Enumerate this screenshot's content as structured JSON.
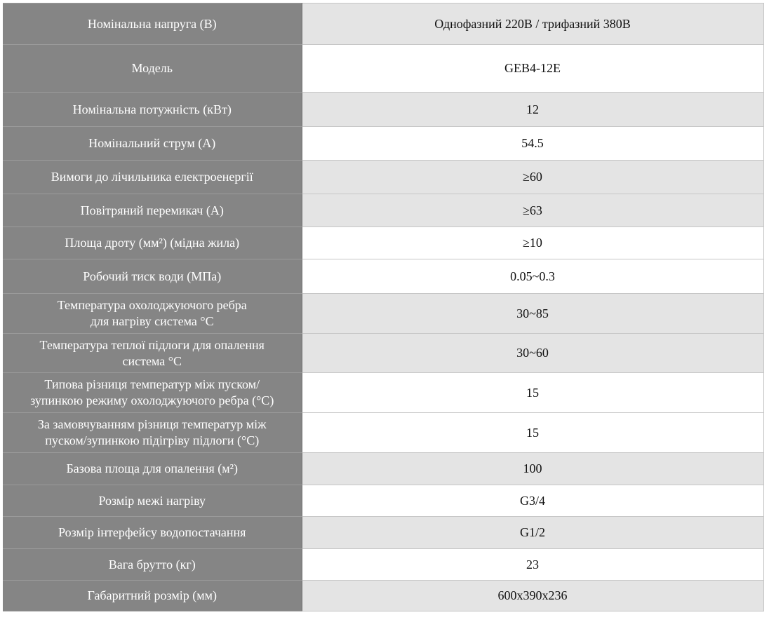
{
  "spec_table": {
    "rows": [
      {
        "label": "Номінальна напруга (В)",
        "value": "Однофазний 220В / трифазний 380В"
      },
      {
        "label": "Модель",
        "value": "GEB4-12E"
      },
      {
        "label": "Номінальна потужність (кВт)",
        "value": "12"
      },
      {
        "label": "Номінальний струм (А)",
        "value": "54.5"
      },
      {
        "label": "Вимоги до лічильника електроенергії",
        "value": "≥60"
      },
      {
        "label": "Повітряний перемикач (А)",
        "value": "≥63"
      },
      {
        "label": "Площа дроту (мм²) (мідна жила)",
        "value": "≥10"
      },
      {
        "label": "Робочий тиск води (МПа)",
        "value": "0.05~0.3"
      },
      {
        "label": "Температура охолоджуючого ребра\nдля нагріву система °С",
        "value": "30~85"
      },
      {
        "label": "Температура теплої підлоги для опалення\nсистема °С",
        "value": "30~60"
      },
      {
        "label": "Типова різниця температур між пуском/\nзупинкою режиму охолоджуючого ребра (°С)",
        "value": "15"
      },
      {
        "label": "За замовчуванням різниця температур між\nпуском/зупинкою підігріву підлоги (°С)",
        "value": "15"
      },
      {
        "label": "Базова площа для опалення (м²)",
        "value": "100"
      },
      {
        "label": "Розмір межі нагріву",
        "value": "G3/4"
      },
      {
        "label": "Розмір інтерфейсу водопостачання",
        "value": "G1/2"
      },
      {
        "label": "Вага брутто (кг)",
        "value": "23"
      },
      {
        "label": "Габаритний розмір (мм)",
        "value": "600x390x236"
      }
    ]
  }
}
